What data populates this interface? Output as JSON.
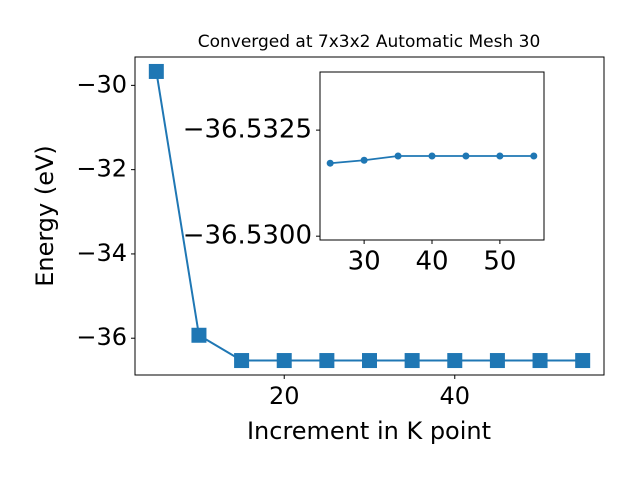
{
  "chart_data": [
    {
      "type": "line",
      "title": "Converged at 7x3x2 Automatic Mesh 30",
      "x_label": "Increment in K point",
      "y_label": "Energy (eV)",
      "x": [
        5,
        10,
        15,
        20,
        25,
        30,
        35,
        40,
        45,
        50,
        55
      ],
      "series": [
        {
          "color": "#1f77b4",
          "marker": "square",
          "values": [
            -29.67,
            -35.93,
            -36.53,
            -36.53,
            -36.53,
            -36.53,
            -36.53,
            -36.53,
            -36.53,
            -36.53,
            -36.53
          ]
        }
      ],
      "xlim": [
        2.5,
        57.5
      ],
      "ylim": [
        -36.873,
        -29.327
      ],
      "xticks": [
        20,
        40
      ],
      "yticks": [
        {
          "value": -36,
          "label": "−36"
        },
        {
          "value": -34,
          "label": "−34"
        },
        {
          "value": -32,
          "label": "−32"
        },
        {
          "value": -30,
          "label": "−30"
        }
      ]
    },
    {
      "type": "line",
      "x": [
        25,
        30,
        35,
        40,
        45,
        50,
        55
      ],
      "series": [
        {
          "color": "#1f77b4",
          "marker": "circle",
          "values": [
            -36.53172,
            -36.53179,
            -36.53189,
            -36.53189,
            -36.53189,
            -36.53189,
            -36.53189
          ]
        }
      ],
      "xlim": [
        23.5,
        56.5
      ],
      "ylim": [
        -36.52991,
        -36.53387
      ],
      "xticks": [
        30,
        40,
        50
      ],
      "yticks": [
        {
          "value": -36.53,
          "label": "−36.5300"
        },
        {
          "value": -36.5325,
          "label": "−36.5325"
        }
      ]
    }
  ]
}
